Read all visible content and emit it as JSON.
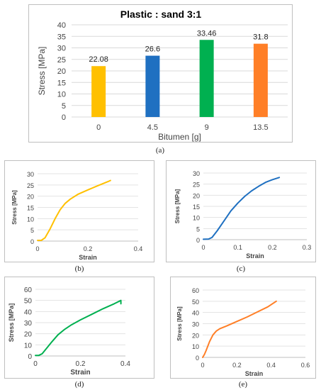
{
  "chart_data": [
    {
      "id": "a",
      "caption": "(a)",
      "type": "bar",
      "title": "Plastic : sand  3:1",
      "xlabel": "Bitumen [g]",
      "ylabel": "Stress [MPa]",
      "categories": [
        "0",
        "4.5",
        "9",
        "13.5"
      ],
      "values": [
        22.08,
        26.6,
        33.46,
        31.8
      ],
      "value_labels": [
        "22.08",
        "26.6",
        "33.46",
        "31.8"
      ],
      "colors": [
        "#FFC000",
        "#1F70C1",
        "#00B050",
        "#FF7F27"
      ],
      "ylim": [
        0,
        40
      ],
      "yticks": [
        0,
        5,
        10,
        15,
        20,
        25,
        30,
        35,
        40
      ],
      "grid": true
    },
    {
      "id": "b",
      "caption": "(b)",
      "type": "line",
      "xlabel": "Strain",
      "ylabel": "Stress [MPa]",
      "color": "#FFC000",
      "xlim": [
        0,
        0.4
      ],
      "ylim": [
        0,
        30
      ],
      "xticks": [
        0,
        0.2,
        0.4
      ],
      "xtick_labels": [
        "0",
        "0.2",
        "0.4"
      ],
      "yticks": [
        0,
        5,
        10,
        15,
        20,
        25,
        30
      ],
      "x": [
        0,
        0.015,
        0.03,
        0.05,
        0.07,
        0.09,
        0.11,
        0.13,
        0.16,
        0.2,
        0.24,
        0.28,
        0.29
      ],
      "y": [
        0.3,
        0.3,
        1.5,
        5.5,
        10,
        14,
        16.8,
        18.7,
        20.8,
        22.8,
        24.7,
        26.5,
        27
      ]
    },
    {
      "id": "c",
      "caption": "(c)",
      "type": "line",
      "xlabel": "Strain",
      "ylabel": "Stress [MPa]",
      "color": "#1F70C1",
      "xlim": [
        0,
        0.3
      ],
      "ylim": [
        0,
        30
      ],
      "xticks": [
        0,
        0.1,
        0.2,
        0.3
      ],
      "xtick_labels": [
        "0",
        "0.1",
        "0.2",
        "0.3"
      ],
      "yticks": [
        0,
        5,
        10,
        15,
        20,
        25,
        30
      ],
      "x": [
        0,
        0.015,
        0.025,
        0.04,
        0.06,
        0.08,
        0.1,
        0.12,
        0.14,
        0.16,
        0.18,
        0.2,
        0.22
      ],
      "y": [
        0.2,
        0.3,
        1,
        4,
        8.5,
        13,
        16.5,
        19.5,
        22,
        24,
        25.8,
        27,
        28
      ]
    },
    {
      "id": "d",
      "caption": "(d)",
      "type": "line",
      "xlabel": "Strain",
      "ylabel": "Stress [MPa]",
      "color": "#00B050",
      "xlim": [
        0,
        0.4
      ],
      "ylim": [
        0,
        60
      ],
      "xticks": [
        0,
        0.2,
        0.4
      ],
      "xtick_labels": [
        "0",
        "0.2",
        "0.4"
      ],
      "yticks": [
        0,
        10,
        20,
        30,
        40,
        50,
        60
      ],
      "x": [
        0,
        0.015,
        0.03,
        0.05,
        0.07,
        0.1,
        0.13,
        0.16,
        0.2,
        0.25,
        0.3,
        0.35,
        0.38,
        0.38
      ],
      "y": [
        0.5,
        0.5,
        2,
        7,
        12,
        19,
        24,
        28,
        32.5,
        37.5,
        42.5,
        47,
        50,
        47
      ]
    },
    {
      "id": "e",
      "caption": "(e)",
      "type": "line",
      "xlabel": "Strain",
      "ylabel": "Stress [MPa]",
      "color": "#FF7F27",
      "xlim": [
        0,
        0.6
      ],
      "ylim": [
        0,
        60
      ],
      "xticks": [
        0,
        0.2,
        0.4,
        0.6
      ],
      "xtick_labels": [
        "0",
        "0.2",
        "0.4",
        "0.6"
      ],
      "yticks": [
        0,
        10,
        20,
        30,
        40,
        50,
        60
      ],
      "x": [
        0,
        0.01,
        0.02,
        0.04,
        0.06,
        0.08,
        0.1,
        0.14,
        0.2,
        0.26,
        0.32,
        0.38,
        0.43
      ],
      "y": [
        0,
        2.5,
        6,
        14,
        20,
        23.5,
        25.5,
        28,
        32,
        36,
        40.5,
        45,
        50
      ]
    }
  ]
}
